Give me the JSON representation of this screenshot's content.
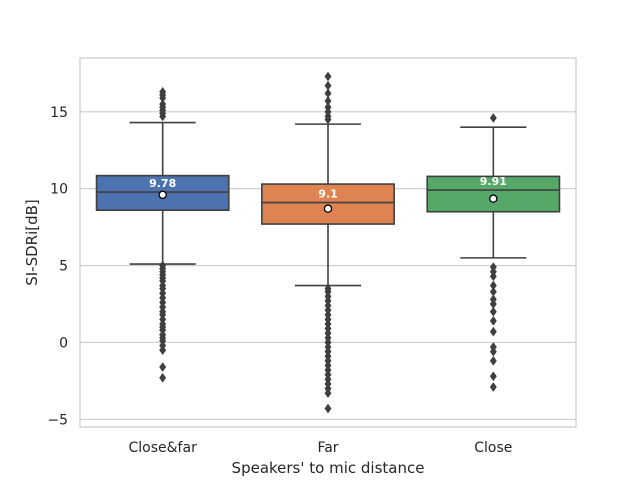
{
  "chart_data": {
    "type": "box",
    "title": "",
    "xlabel": "Speakers' to mic distance",
    "ylabel": "SI-SDRi[dB]",
    "ylim": [
      -5.5,
      18.5
    ],
    "yticks": [
      -5,
      0,
      5,
      10,
      15
    ],
    "ytick_labels": [
      "−5",
      "0",
      "5",
      "10",
      "15"
    ],
    "grid": true,
    "categories": [
      "Close&far",
      "Far",
      "Close"
    ],
    "colors": [
      "#4c72b0",
      "#dd8452",
      "#55a868"
    ],
    "boxes": [
      {
        "category": "Close&far",
        "label": "9.78",
        "q1": 8.6,
        "median": 9.78,
        "q3": 10.85,
        "whisker_low": 5.1,
        "whisker_high": 14.3,
        "mean": 9.6,
        "outliers": [
          16.3,
          16.1,
          15.9,
          15.5,
          15.3,
          15.1,
          14.9,
          14.7,
          5.0,
          4.8,
          4.6,
          4.4,
          4.2,
          4.0,
          3.7,
          3.5,
          3.2,
          2.9,
          2.6,
          2.3,
          2.0,
          1.8,
          1.5,
          1.2,
          1.0,
          0.8,
          0.5,
          0.3,
          0.1,
          -0.2,
          -0.5,
          -1.6,
          -2.3
        ]
      },
      {
        "category": "Far",
        "label": "9.1",
        "q1": 7.7,
        "median": 9.1,
        "q3": 10.3,
        "whisker_low": 3.7,
        "whisker_high": 14.2,
        "mean": 8.7,
        "outliers": [
          17.3,
          16.7,
          16.2,
          15.7,
          15.3,
          15.0,
          14.7,
          14.5,
          3.5,
          3.3,
          3.0,
          2.7,
          2.4,
          2.1,
          1.8,
          1.5,
          1.2,
          0.9,
          0.6,
          0.3,
          0.0,
          -0.3,
          -0.6,
          -0.9,
          -1.2,
          -1.5,
          -1.8,
          -2.1,
          -2.4,
          -2.7,
          -3.0,
          -3.3,
          -4.3
        ]
      },
      {
        "category": "Close",
        "label": "9.91",
        "q1": 8.5,
        "median": 9.91,
        "q3": 10.8,
        "whisker_low": 5.5,
        "whisker_high": 14.0,
        "mean": 9.35,
        "outliers": [
          14.6,
          4.9,
          4.6,
          4.3,
          3.7,
          3.3,
          2.8,
          2.5,
          2.0,
          1.4,
          0.7,
          -0.3,
          -0.6,
          -1.2,
          -2.2,
          -2.9
        ]
      }
    ]
  }
}
